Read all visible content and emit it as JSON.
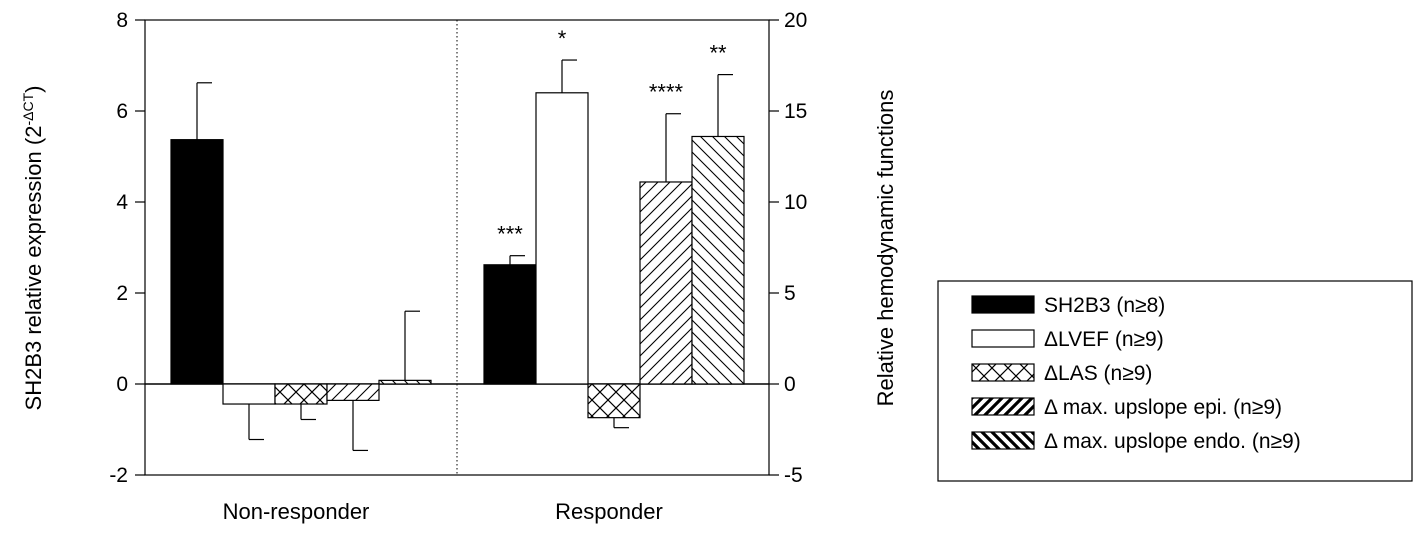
{
  "chart_data": {
    "type": "bar",
    "categories": [
      "Non-responder",
      "Responder"
    ],
    "y_left": {
      "label_main": "SH2B3 relative expression (2",
      "label_sup": "-ΔCT",
      "label_close": ")",
      "range": [
        -2,
        8
      ],
      "ticks": [
        "-2",
        "0",
        "2",
        "4",
        "6",
        "8"
      ]
    },
    "y_right": {
      "label": "Relative hemodynamic functions",
      "range": [
        -5,
        20
      ],
      "ticks": [
        "-5",
        "0",
        "5",
        "10",
        "15",
        "20"
      ]
    },
    "series": [
      {
        "name": "SH2B3 (n≥8)",
        "axis": "left",
        "pattern": "solid",
        "values": [
          5.37,
          2.62
        ],
        "errors": [
          1.25,
          0.2
        ],
        "significance": [
          "",
          "***"
        ]
      },
      {
        "name": "ΔLVEF (n≥9)",
        "axis": "right",
        "pattern": "none",
        "values": [
          -1.1,
          16.0
        ],
        "errors": [
          1.95,
          1.8
        ],
        "significance": [
          "",
          "*"
        ]
      },
      {
        "name": "ΔLAS (n≥9)",
        "axis": "right",
        "pattern": "crosshatch",
        "values": [
          -1.1,
          -1.85
        ],
        "errors": [
          0.85,
          0.55
        ],
        "significance": [
          "",
          ""
        ]
      },
      {
        "name": "Δ max. upslope epi. (n≥9)",
        "axis": "right",
        "pattern": "diag-up",
        "values": [
          -0.9,
          11.1
        ],
        "errors": [
          2.75,
          3.75
        ],
        "significance": [
          "",
          "****"
        ]
      },
      {
        "name": "Δ max. upslope endo. (n≥9)",
        "axis": "right",
        "pattern": "diag-down",
        "values": [
          0.2,
          13.6
        ],
        "errors": [
          3.8,
          3.4
        ],
        "significance": [
          "",
          "**"
        ]
      }
    ],
    "legend_position": "right",
    "grid": false
  }
}
